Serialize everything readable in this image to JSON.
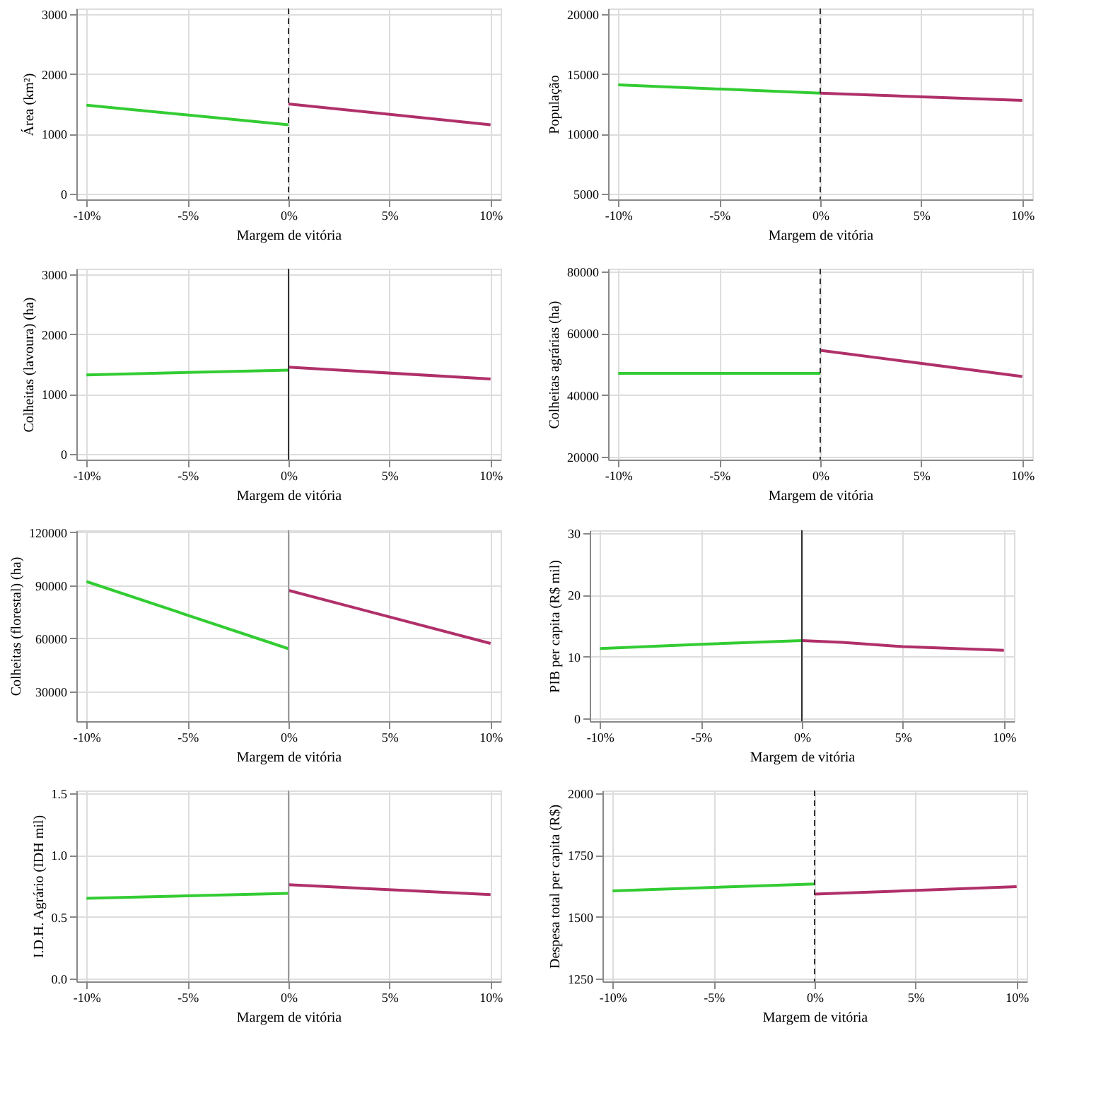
{
  "chart_data": [
    {
      "type": "line",
      "xlabel": "Margem de vitória",
      "ylabel": "Área (km²)",
      "xlim": [
        -10.5,
        10.5
      ],
      "xticks": [
        {
          "value": -10,
          "label": "-10%"
        },
        {
          "value": -5,
          "label": "-5%"
        },
        {
          "value": 0,
          "label": "0%"
        },
        {
          "value": 5,
          "label": "5%"
        },
        {
          "value": 10,
          "label": "10%"
        }
      ],
      "ylim": [
        -100,
        3100
      ],
      "yticks": [
        {
          "value": 0,
          "label": "0"
        },
        {
          "value": 1000,
          "label": "1000"
        },
        {
          "value": 2000,
          "label": "2000"
        },
        {
          "value": 3000,
          "label": "3000"
        }
      ],
      "grid": true,
      "ref_lines": [
        {
          "axis": "x",
          "value": 0,
          "color": "#333333",
          "line_style": "dashed"
        }
      ],
      "series": [
        {
          "color": "#33cc33",
          "x": [
            -10,
            0
          ],
          "values": [
            1480,
            1150
          ]
        },
        {
          "color": "#b0306a",
          "x": [
            0,
            10
          ],
          "values": [
            1500,
            1150
          ]
        }
      ]
    },
    {
      "type": "line",
      "xlabel": "Margem de vitória",
      "ylabel": "População",
      "xlim": [
        -10.5,
        10.5
      ],
      "xticks": [
        {
          "value": -10,
          "label": "-10%"
        },
        {
          "value": -5,
          "label": "-5%"
        },
        {
          "value": 0,
          "label": "0%"
        },
        {
          "value": 5,
          "label": "5%"
        },
        {
          "value": 10,
          "label": "10%"
        }
      ],
      "ylim": [
        4500,
        20500
      ],
      "yticks": [
        {
          "value": 5000,
          "label": "5000"
        },
        {
          "value": 10000,
          "label": "10000"
        },
        {
          "value": 15000,
          "label": "15000"
        },
        {
          "value": 20000,
          "label": "20000"
        }
      ],
      "grid": true,
      "ref_lines": [
        {
          "axis": "x",
          "value": 0,
          "color": "#333333",
          "line_style": "dashed"
        }
      ],
      "series": [
        {
          "color": "#33cc33",
          "x": [
            -10,
            0
          ],
          "values": [
            14100,
            13400
          ]
        },
        {
          "color": "#b0306a",
          "x": [
            0,
            10
          ],
          "values": [
            13400,
            12800
          ]
        }
      ]
    },
    {
      "type": "line",
      "xlabel": "Margem de vitória",
      "ylabel": "Colheitas (lavoura) (ha)",
      "xlim": [
        -10.5,
        10.5
      ],
      "xticks": [
        {
          "value": -10,
          "label": "-10%"
        },
        {
          "value": -5,
          "label": "-5%"
        },
        {
          "value": 0,
          "label": "0%"
        },
        {
          "value": 5,
          "label": "5%"
        },
        {
          "value": 10,
          "label": "10%"
        }
      ],
      "ylim": [
        -100,
        3100
      ],
      "yticks": [
        {
          "value": 0,
          "label": "0"
        },
        {
          "value": 1000,
          "label": "1000"
        },
        {
          "value": 2000,
          "label": "2000"
        },
        {
          "value": 3000,
          "label": "3000"
        }
      ],
      "grid": true,
      "ref_lines": [
        {
          "axis": "x",
          "value": 0,
          "color": "#333333",
          "line_style": "solid"
        }
      ],
      "series": [
        {
          "color": "#33cc33",
          "x": [
            -10,
            0
          ],
          "values": [
            1320,
            1400
          ]
        },
        {
          "color": "#b0306a",
          "x": [
            0,
            10
          ],
          "values": [
            1450,
            1250
          ]
        }
      ]
    },
    {
      "type": "line",
      "xlabel": "Margem de vitória",
      "ylabel": "Colheitas agrárias (ha)",
      "xlim": [
        -10.5,
        10.5
      ],
      "xticks": [
        {
          "value": -10,
          "label": "-10%"
        },
        {
          "value": -5,
          "label": "-5%"
        },
        {
          "value": 0,
          "label": "0%"
        },
        {
          "value": 5,
          "label": "5%"
        },
        {
          "value": 10,
          "label": "10%"
        }
      ],
      "ylim": [
        19000,
        81000
      ],
      "yticks": [
        {
          "value": 20000,
          "label": "20000"
        },
        {
          "value": 40000,
          "label": "40000"
        },
        {
          "value": 60000,
          "label": "60000"
        },
        {
          "value": 80000,
          "label": "80000"
        }
      ],
      "grid": true,
      "ref_lines": [
        {
          "axis": "x",
          "value": 0,
          "color": "#333333",
          "line_style": "dashed"
        }
      ],
      "series": [
        {
          "color": "#33cc33",
          "x": [
            -10,
            0
          ],
          "values": [
            47000,
            47000
          ]
        },
        {
          "color": "#b0306a",
          "x": [
            0,
            10
          ],
          "values": [
            54500,
            46000
          ]
        }
      ]
    },
    {
      "type": "line",
      "xlabel": "Margem de vitória",
      "ylabel": "Colheitas (florestal) (ha)",
      "xlim": [
        -10.5,
        10.5
      ],
      "xticks": [
        {
          "value": -10,
          "label": "-10%"
        },
        {
          "value": -5,
          "label": "-5%"
        },
        {
          "value": 0,
          "label": "0%"
        },
        {
          "value": 5,
          "label": "5%"
        },
        {
          "value": 10,
          "label": "10%"
        }
      ],
      "ylim": [
        13000,
        121000
      ],
      "yticks": [
        {
          "value": 30000,
          "label": "30000"
        },
        {
          "value": 60000,
          "label": "60000"
        },
        {
          "value": 90000,
          "label": "90000"
        },
        {
          "value": 120000,
          "label": "120000"
        }
      ],
      "grid": true,
      "ref_lines": [
        {
          "axis": "x",
          "value": 0,
          "color": "#999999",
          "line_style": "solid"
        }
      ],
      "series": [
        {
          "color": "#33cc33",
          "x": [
            -10,
            0
          ],
          "values": [
            92000,
            54000
          ]
        },
        {
          "color": "#b0306a",
          "x": [
            0,
            10
          ],
          "values": [
            87000,
            57000
          ]
        }
      ]
    },
    {
      "type": "line",
      "xlabel": "Margem de vitória",
      "ylabel": "PIB per capita (R$ mil)",
      "xlim": [
        -10.5,
        10.5
      ],
      "xticks": [
        {
          "value": -10,
          "label": "-10%"
        },
        {
          "value": -5,
          "label": "-5%"
        },
        {
          "value": 0,
          "label": "0%"
        },
        {
          "value": 5,
          "label": "5%"
        },
        {
          "value": 10,
          "label": "10%"
        }
      ],
      "ylim": [
        -0.5,
        30.5
      ],
      "yticks": [
        0,
        10,
        20,
        30
      ],
      "grid": true,
      "ref_lines": [
        {
          "axis": "x",
          "value": 0,
          "color": "#333333",
          "line_style": "solid"
        }
      ],
      "series": [
        {
          "color": "#33cc33",
          "x": [
            -10,
            -5,
            0
          ],
          "values": [
            11.3,
            12.0,
            12.6
          ]
        },
        {
          "color": "#b0306a",
          "x": [
            0,
            2,
            5,
            10
          ],
          "values": [
            12.6,
            12.3,
            11.6,
            11.0
          ]
        }
      ]
    },
    {
      "type": "line",
      "xlabel": "Margem de vitória",
      "ylabel": "I.D.H. Agrário (IDH mil)",
      "xlim": [
        -10.5,
        10.5
      ],
      "xticks": [
        {
          "value": -10,
          "label": "-10%"
        },
        {
          "value": -5,
          "label": "-5%"
        },
        {
          "value": 0,
          "label": "0%"
        },
        {
          "value": 5,
          "label": "5%"
        },
        {
          "value": 10,
          "label": "10%"
        }
      ],
      "ylim": [
        -0.02,
        1.52
      ],
      "yticks": [
        {
          "value": 0,
          "label": "0.0"
        },
        {
          "value": 0.5,
          "label": "0.5"
        },
        {
          "value": 1,
          "label": "1.0"
        },
        {
          "value": 1.5,
          "label": "1.5"
        }
      ],
      "grid": true,
      "ref_lines": [
        {
          "axis": "x",
          "value": 0,
          "color": "#999999",
          "line_style": "solid"
        }
      ],
      "series": [
        {
          "color": "#33cc33",
          "x": [
            -10,
            0
          ],
          "values": [
            0.65,
            0.69
          ]
        },
        {
          "color": "#b0306a",
          "x": [
            0,
            10
          ],
          "values": [
            0.76,
            0.68
          ]
        }
      ]
    },
    {
      "type": "line",
      "xlabel": "Margem de vitória",
      "ylabel": "Despesa total per capita (R$)",
      "xlim": [
        -10.5,
        10.5
      ],
      "xticks": [
        {
          "value": -10,
          "label": "-10%"
        },
        {
          "value": -5,
          "label": "-5%"
        },
        {
          "value": 0,
          "label": "0%"
        },
        {
          "value": 5,
          "label": "5%"
        },
        {
          "value": 10,
          "label": "10%"
        }
      ],
      "ylim": [
        1240,
        2010
      ],
      "yticks": [
        {
          "value": 1250,
          "label": "1250"
        },
        {
          "value": 1500,
          "label": "1500"
        },
        {
          "value": 1750,
          "label": "1750"
        },
        {
          "value": 2000,
          "label": "2000"
        }
      ],
      "grid": true,
      "ref_lines": [
        {
          "axis": "x",
          "value": 0,
          "color": "#333333",
          "line_style": "dashed"
        }
      ],
      "series": [
        {
          "color": "#33cc33",
          "x": [
            -10,
            0
          ],
          "values": [
            1605,
            1633
          ]
        },
        {
          "color": "#b0306a",
          "x": [
            0,
            10
          ],
          "values": [
            1592,
            1622
          ]
        }
      ]
    }
  ]
}
